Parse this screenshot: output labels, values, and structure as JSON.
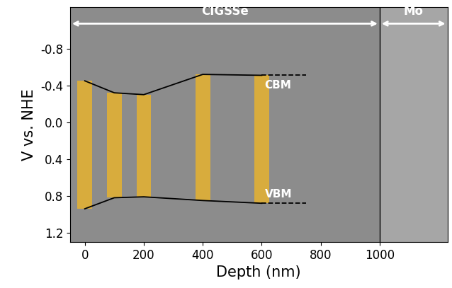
{
  "chart_data": {
    "type": "line",
    "x_label": "Depth (nm)",
    "y_label": "V vs. NHE",
    "xlim": [
      -50,
      1230
    ],
    "xticks": [
      0,
      200,
      400,
      600,
      800,
      1000
    ],
    "ylim": [
      1.3,
      -1.25
    ],
    "yticks": [
      -0.8,
      -0.4,
      {
        "value": 0,
        "label": "0.0"
      },
      0.4,
      0.8,
      1.2
    ],
    "grid": false,
    "series": [
      {
        "type": "line",
        "color": "#000000",
        "line_style": "solid",
        "x": [
          0,
          100,
          200,
          400,
          600
        ],
        "values": [
          -0.45,
          -0.32,
          -0.3,
          -0.52,
          -0.51
        ]
      },
      {
        "type": "line",
        "color": "#000000",
        "line_style": "solid",
        "x": [
          0,
          100,
          200,
          400,
          600
        ],
        "values": [
          0.94,
          0.82,
          0.81,
          0.85,
          0.88
        ]
      },
      {
        "type": "line",
        "color": "#000000",
        "line_style": "dashed",
        "x": [
          600,
          750
        ],
        "values": [
          -0.51,
          -0.51
        ]
      },
      {
        "type": "line",
        "color": "#000000",
        "line_style": "dashed",
        "x": [
          600,
          750
        ],
        "values": [
          0.88,
          0.88
        ]
      }
    ],
    "bands": {
      "type": "bar",
      "color": "#f2b823",
      "x": [
        0,
        100,
        200,
        400,
        600
      ],
      "low": [
        -0.45,
        -0.32,
        -0.3,
        -0.52,
        -0.51
      ],
      "high": [
        0.94,
        0.82,
        0.81,
        0.85,
        0.88
      ]
    },
    "annotations": [
      {
        "text": "CBM",
        "x": 610,
        "y": -0.4
      },
      {
        "text": "VBM",
        "x": 610,
        "y": 0.78
      }
    ],
    "regions": [
      {
        "label": "CIGSSe",
        "start": -50,
        "end": 1000
      },
      {
        "label": "Mo",
        "start": 1000,
        "end": 1230
      }
    ]
  }
}
